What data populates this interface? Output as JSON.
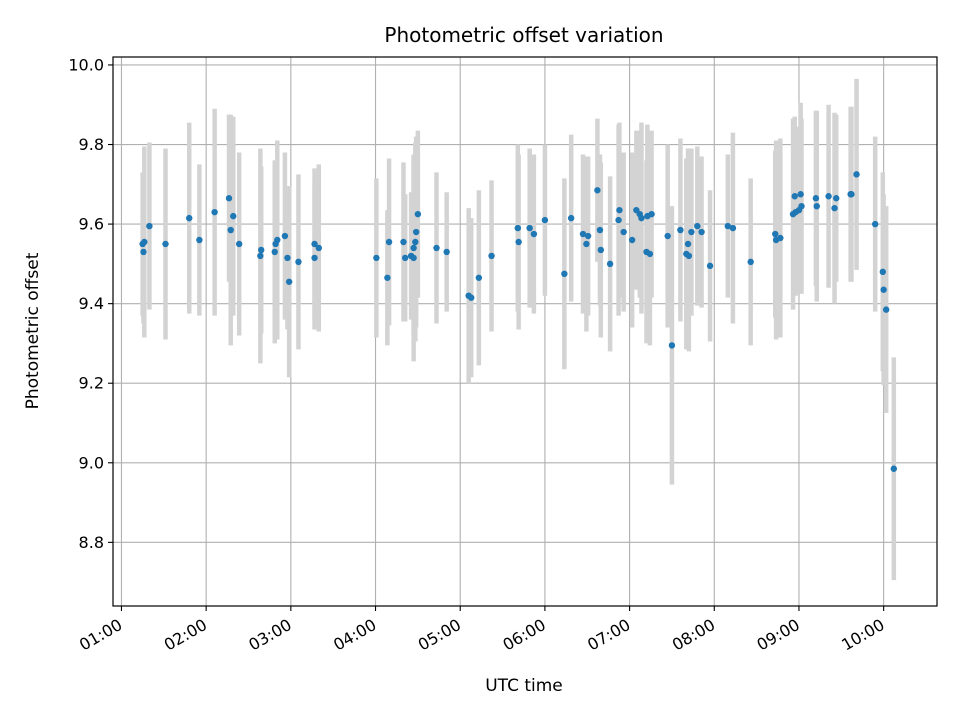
{
  "chart_data": {
    "type": "scatter",
    "title": "Photometric offset variation",
    "xlabel": "UTC time",
    "ylabel": "Photometric offset",
    "x_unit": "hours UTC",
    "xlim": [
      0.9,
      10.63
    ],
    "ylim": [
      8.64,
      10.02
    ],
    "xticks": [
      1,
      2,
      3,
      4,
      5,
      6,
      7,
      8,
      9,
      10
    ],
    "xtick_labels": [
      "01:00",
      "02:00",
      "03:00",
      "04:00",
      "05:00",
      "06:00",
      "07:00",
      "08:00",
      "09:00",
      "10:00"
    ],
    "yticks": [
      8.8,
      9.0,
      9.2,
      9.4,
      9.6,
      9.8,
      10.0
    ],
    "ytick_labels": [
      "8.8",
      "9.0",
      "9.2",
      "9.4",
      "9.6",
      "9.8",
      "10.0"
    ],
    "grid": true,
    "colors": {
      "point": "#1f77b4",
      "errorbar": "#d3d3d3",
      "grid": "#b0b0b0"
    },
    "series": [
      {
        "x": [
          1.25,
          1.26,
          1.27,
          1.33,
          1.52,
          1.8,
          1.92,
          2.1,
          2.27,
          2.29,
          2.32,
          2.39,
          2.64,
          2.65,
          2.81,
          2.82,
          2.84,
          2.93,
          2.96,
          2.98,
          3.09,
          3.28,
          3.28,
          3.33,
          4.01,
          4.14,
          4.16,
          4.33,
          4.35,
          4.42,
          4.45,
          4.45,
          4.47,
          4.48,
          4.5,
          4.72,
          4.84,
          5.1,
          5.13,
          5.22,
          5.37,
          5.68,
          5.69,
          5.82,
          5.87,
          6.0,
          6.23,
          6.31,
          6.45,
          6.49,
          6.51,
          6.62,
          6.65,
          6.66,
          6.77,
          6.87,
          6.88,
          6.93,
          7.03,
          7.08,
          7.12,
          7.14,
          7.2,
          7.21,
          7.24,
          7.26,
          7.45,
          7.5,
          7.6,
          7.67,
          7.69,
          7.7,
          7.73,
          7.8,
          7.85,
          7.95,
          8.16,
          8.22,
          8.43,
          8.72,
          8.73,
          8.78,
          8.93,
          8.95,
          8.96,
          9.0,
          9.02,
          9.03,
          9.2,
          9.21,
          9.35,
          9.42,
          9.44,
          9.61,
          9.62,
          9.68,
          9.9,
          9.99,
          10.0,
          10.03,
          10.12
        ],
        "y": [
          9.55,
          9.53,
          9.555,
          9.595,
          9.55,
          9.615,
          9.56,
          9.63,
          9.665,
          9.585,
          9.62,
          9.55,
          9.52,
          9.535,
          9.53,
          9.55,
          9.56,
          9.57,
          9.515,
          9.455,
          9.505,
          9.515,
          9.55,
          9.54,
          9.515,
          9.465,
          9.555,
          9.555,
          9.515,
          9.52,
          9.54,
          9.515,
          9.555,
          9.58,
          9.625,
          9.54,
          9.53,
          9.42,
          9.415,
          9.465,
          9.52,
          9.59,
          9.555,
          9.59,
          9.575,
          9.61,
          9.475,
          9.615,
          9.575,
          9.55,
          9.57,
          9.685,
          9.585,
          9.535,
          9.5,
          9.61,
          9.635,
          9.58,
          9.56,
          9.635,
          9.625,
          9.615,
          9.53,
          9.62,
          9.525,
          9.625,
          9.57,
          9.295,
          9.585,
          9.525,
          9.55,
          9.52,
          9.58,
          9.595,
          9.58,
          9.495,
          9.595,
          9.59,
          9.505,
          9.575,
          9.56,
          9.565,
          9.625,
          9.67,
          9.63,
          9.635,
          9.675,
          9.645,
          9.665,
          9.645,
          9.67,
          9.64,
          9.665,
          9.675,
          9.675,
          9.725,
          9.6,
          9.48,
          9.435,
          9.385,
          8.985
        ],
        "yerr": [
          0.18,
          0.18,
          0.24,
          0.21,
          0.24,
          0.24,
          0.19,
          0.26,
          0.21,
          0.29,
          0.25,
          0.23,
          0.27,
          0.21,
          0.23,
          0.21,
          0.25,
          0.21,
          0.18,
          0.24,
          0.22,
          0.18,
          0.19,
          0.21,
          0.2,
          0.17,
          0.21,
          0.2,
          0.16,
          0.16,
          0.22,
          0.26,
          0.25,
          0.24,
          0.21,
          0.19,
          0.15,
          0.22,
          0.2,
          0.22,
          0.19,
          0.21,
          0.22,
          0.2,
          0.2,
          0.19,
          0.24,
          0.21,
          0.2,
          0.22,
          0.2,
          0.18,
          0.19,
          0.22,
          0.22,
          0.24,
          0.22,
          0.2,
          0.22,
          0.2,
          0.21,
          0.24,
          0.23,
          0.23,
          0.23,
          0.21,
          0.23,
          0.35,
          0.23,
          0.24,
          0.24,
          0.24,
          0.21,
          0.2,
          0.19,
          0.19,
          0.18,
          0.24,
          0.21,
          0.21,
          0.25,
          0.25,
          0.24,
          0.2,
          0.21,
          0.21,
          0.23,
          0.22,
          0.22,
          0.24,
          0.23,
          0.24,
          0.21,
          0.22,
          0.22,
          0.24,
          0.22,
          0.25,
          0.24,
          0.26,
          0.28
        ]
      }
    ]
  }
}
